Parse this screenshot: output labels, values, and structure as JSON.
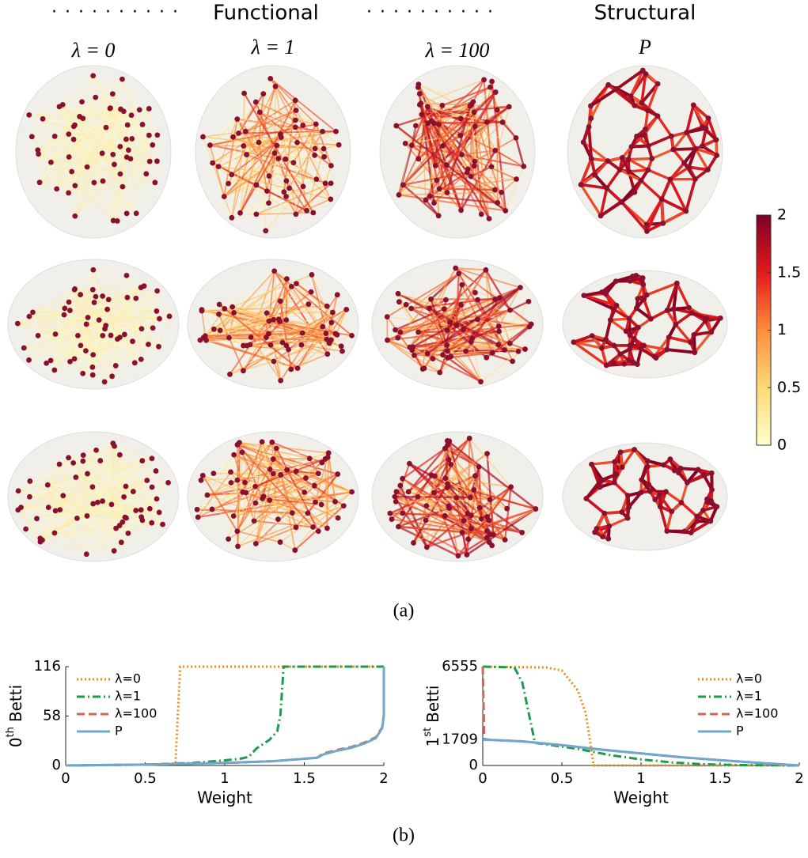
{
  "figure": {
    "group_titles": [
      "Functional",
      "Structural"
    ],
    "column_titles": [
      "λ = 0",
      "λ = 1",
      "λ = 100",
      "P"
    ],
    "panel_labels": [
      "(a)",
      "(b)"
    ],
    "colorbar": {
      "lim": [
        0,
        2
      ],
      "ticks": [
        0,
        0.5,
        1,
        1.5,
        2
      ],
      "colors": [
        "#ffffcc",
        "#fed976",
        "#fd8d3c",
        "#e31a1c",
        "#800026"
      ]
    }
  },
  "chart_data": [
    {
      "type": "line",
      "xlabel": "Weight",
      "ylabel_parts": [
        "0",
        "th",
        "Betti"
      ],
      "xlim": [
        0,
        2
      ],
      "ylim": [
        0,
        116
      ],
      "xticks": [
        0,
        0.5,
        1,
        1.5,
        2
      ],
      "yticks": [
        0,
        58,
        116
      ],
      "legend": "upper left",
      "series": [
        {
          "name": "λ=0",
          "color": "#ee8a1a",
          "style": "dotted",
          "x": [
            0,
            0.5,
            0.69,
            0.72,
            1,
            1.5,
            2
          ],
          "values": [
            0,
            1,
            2,
            116,
            116,
            116,
            116
          ]
        },
        {
          "name": "λ=1",
          "color": "#1e9a4c",
          "style": "dashdot",
          "x": [
            0,
            0.5,
            0.8,
            1.0,
            1.1,
            1.15,
            1.2,
            1.28,
            1.33,
            1.35,
            1.37,
            1.6,
            2
          ],
          "values": [
            0,
            1,
            3,
            6,
            8,
            10,
            20,
            30,
            40,
            60,
            116,
            116,
            116
          ]
        },
        {
          "name": "λ=100",
          "color": "#cc6a5a",
          "style": "dashed",
          "x": [
            0,
            0.5,
            1.0,
            1.3,
            1.58,
            1.62,
            1.7,
            1.8,
            1.88,
            1.95,
            1.99,
            2,
            2
          ],
          "values": [
            0,
            1,
            3,
            5,
            9,
            14,
            18,
            22,
            27,
            33,
            45,
            60,
            116
          ]
        },
        {
          "name": "P",
          "color": "#6fa8cc",
          "style": "solid",
          "x": [
            0,
            0.5,
            1.0,
            1.3,
            1.58,
            1.62,
            1.7,
            1.8,
            1.88,
            1.95,
            1.99,
            2,
            2
          ],
          "values": [
            0,
            1,
            3,
            5,
            9,
            13,
            17,
            21,
            26,
            32,
            44,
            58,
            116
          ]
        }
      ]
    },
    {
      "type": "line",
      "xlabel": "Weight",
      "ylabel_parts": [
        "1",
        "st",
        "Betti"
      ],
      "xlim": [
        0,
        2
      ],
      "ylim": [
        0,
        6555
      ],
      "xticks": [
        0,
        0.5,
        1,
        1.5,
        2
      ],
      "yticks": [
        0,
        1709,
        6555
      ],
      "legend": "upper right",
      "series": [
        {
          "name": "λ=0",
          "color": "#ee8a1a",
          "style": "dotted",
          "x": [
            0,
            0.4,
            0.5,
            0.6,
            0.65,
            0.68,
            0.7,
            1,
            1.5,
            2
          ],
          "values": [
            6555,
            6500,
            6300,
            5000,
            3500,
            1500,
            0,
            0,
            0,
            0
          ]
        },
        {
          "name": "λ=1",
          "color": "#1e9a4c",
          "style": "dashdot",
          "x": [
            0,
            0.2,
            0.25,
            0.3,
            0.33,
            0.4,
            0.6,
            0.8,
            1.0,
            1.2,
            1.4,
            1.6,
            2
          ],
          "values": [
            6555,
            6500,
            5500,
            3000,
            1500,
            1400,
            1100,
            700,
            400,
            200,
            80,
            30,
            0
          ]
        },
        {
          "name": "λ=100",
          "color": "#cc6a5a",
          "style": "dashed",
          "x": [
            0,
            0.01,
            0.05,
            0.25,
            0.5,
            0.75,
            1.0,
            1.25,
            1.5,
            1.75,
            2
          ],
          "values": [
            6555,
            1750,
            1700,
            1600,
            1350,
            1050,
            800,
            550,
            350,
            170,
            0
          ]
        },
        {
          "name": "P",
          "color": "#6fa8cc",
          "style": "solid",
          "x": [
            0,
            0.05,
            0.25,
            0.5,
            0.75,
            1.0,
            1.25,
            1.5,
            1.75,
            2
          ],
          "values": [
            1709,
            1700,
            1600,
            1350,
            1050,
            800,
            550,
            350,
            170,
            0
          ]
        }
      ]
    }
  ]
}
